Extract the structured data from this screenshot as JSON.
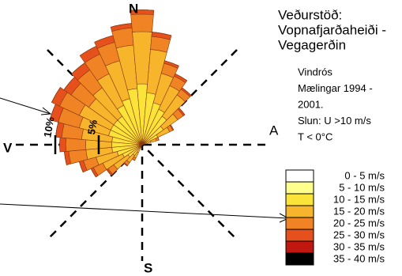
{
  "chart_data": {
    "type": "windrose",
    "title": [
      "Veðurstöð:",
      "Vopnafjarðaheiði -",
      "Vegagerðin"
    ],
    "subtitle": [
      "Vindrós",
      "Mælingar 1994 -",
      "2001.",
      "Slun: U >10 m/s",
      "T < 0°C"
    ],
    "compass": [
      "N",
      "A",
      "S",
      "V"
    ],
    "directions": [
      210,
      220,
      230,
      240,
      250,
      260,
      270,
      280,
      290,
      300,
      310,
      320,
      330,
      340,
      350,
      0,
      10,
      20,
      30,
      40,
      50,
      60,
      70
    ],
    "rlim": [
      0,
      16
    ],
    "rticks": [
      {
        "value": 5,
        "label": "5%"
      },
      {
        "value": 10,
        "label": "10%"
      }
    ],
    "series": [
      {
        "name": "0 - 5 m/s",
        "color": "#ffffff",
        "values": [
          0,
          0,
          0,
          0,
          0,
          0,
          0,
          0,
          0,
          0,
          0,
          0,
          0,
          0,
          0,
          0,
          0,
          0,
          0,
          0,
          0,
          0,
          0
        ]
      },
      {
        "name": "5 - 10 m/s",
        "color": "#ffff8c",
        "values": [
          0,
          0,
          0,
          0,
          0,
          0,
          0,
          0,
          0,
          0,
          0,
          0,
          0,
          0,
          0,
          0,
          0,
          0,
          0,
          0,
          0,
          0,
          0
        ]
      },
      {
        "name": "10 - 15 m/s",
        "color": "#fbe43a",
        "values": [
          1,
          1.5,
          2,
          2.5,
          3,
          3.5,
          3.5,
          3.5,
          4,
          4,
          4,
          4,
          5,
          5.5,
          6.5,
          7,
          6,
          5,
          4.5,
          4,
          3,
          2,
          1
        ]
      },
      {
        "name": "15 - 20 m/s",
        "color": "#f7b52c",
        "values": [
          0.7,
          1,
          2,
          2.5,
          2.5,
          3,
          3,
          3.5,
          3.5,
          4,
          3.5,
          4,
          4,
          4.5,
          5,
          6,
          5,
          3.5,
          3,
          3,
          2,
          1.5,
          0.7
        ]
      },
      {
        "name": "20 - 25 m/s",
        "color": "#f08424",
        "values": [
          0.3,
          0.4,
          0.8,
          1.2,
          1.5,
          2,
          2.3,
          2.3,
          2.5,
          2.5,
          2.5,
          2.5,
          2.5,
          2.2,
          2,
          2,
          1.5,
          1.2,
          1.2,
          0.8,
          0.8,
          0.4,
          0.3
        ]
      },
      {
        "name": "25 - 30 m/s",
        "color": "#e6501c",
        "values": [
          0,
          0.1,
          0.2,
          0.3,
          0.5,
          0.5,
          0.7,
          0.7,
          1,
          1,
          1,
          1,
          1,
          0.8,
          0.5,
          0.5,
          0.5,
          0.3,
          0.3,
          0.2,
          0.2,
          0.1,
          0
        ]
      },
      {
        "name": "30 - 35 m/s",
        "color": "#c01810",
        "values": [
          0,
          0,
          0,
          0,
          0,
          0,
          0,
          0,
          0,
          0,
          0,
          0,
          0,
          0,
          0,
          0,
          0,
          0,
          0,
          0,
          0,
          0,
          0
        ]
      },
      {
        "name": "35 - 40 m/s",
        "color": "#000000",
        "values": [
          0,
          0,
          0,
          0,
          0,
          0,
          0,
          0,
          0,
          0,
          0,
          0,
          0,
          0,
          0,
          0,
          0,
          0,
          0,
          0,
          0,
          0,
          0
        ]
      }
    ]
  }
}
